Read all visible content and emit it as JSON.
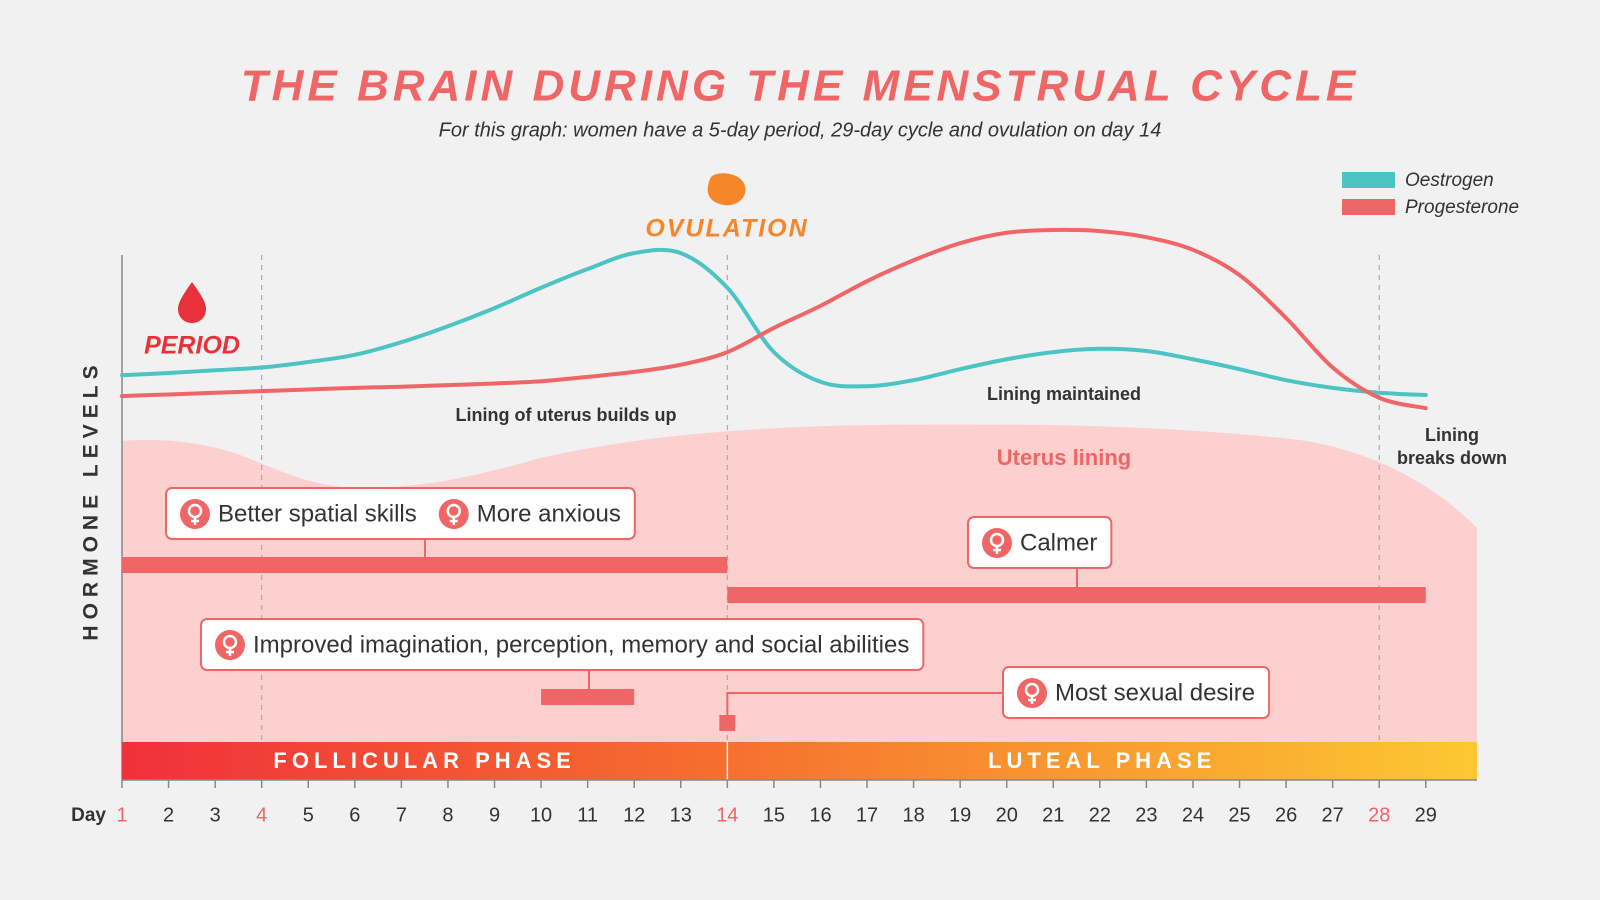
{
  "chart_data": {
    "type": "line",
    "title": "THE BRAIN DURING THE MENSTRUAL CYCLE",
    "subtitle": "For this graph: women have a 5-day period, 29-day cycle and ovulation on day 14",
    "ylabel": "HORMONE LEVELS",
    "xlabel": "Day",
    "x": [
      1,
      2,
      3,
      4,
      5,
      6,
      7,
      8,
      9,
      10,
      11,
      12,
      13,
      14,
      15,
      16,
      17,
      18,
      19,
      20,
      21,
      22,
      23,
      24,
      25,
      26,
      27,
      28,
      29
    ],
    "xlim": [
      1,
      30.1
    ],
    "ylim": [
      0,
      100
    ],
    "xticks": [
      1,
      2,
      3,
      4,
      5,
      6,
      7,
      8,
      9,
      10,
      11,
      12,
      13,
      14,
      15,
      16,
      17,
      18,
      19,
      20,
      21,
      22,
      23,
      24,
      25,
      26,
      27,
      28,
      29
    ],
    "xtick_highlight": [
      1,
      4,
      14,
      28
    ],
    "xtick_highlight_color": "#f06565",
    "vlines": [
      4,
      14,
      28
    ],
    "series": [
      {
        "name": "Oestrogen",
        "color": "#4cc4c4",
        "values": [
          73.6,
          74,
          74.5,
          75,
          76,
          77.3,
          79.6,
          82.5,
          85.8,
          89.5,
          92.9,
          95.8,
          95.8,
          89.5,
          77.8,
          72.4,
          71.6,
          72.7,
          74.7,
          76.5,
          77.8,
          78.4,
          78,
          76.5,
          74.7,
          72.7,
          71.3,
          70.4,
          70
        ]
      },
      {
        "name": "Progesterone",
        "color": "#f06565",
        "values": [
          69.8,
          70.1,
          70.4,
          70.7,
          71,
          71.3,
          71.5,
          71.8,
          72.1,
          72.5,
          73.3,
          74.2,
          75.5,
          77.8,
          82.2,
          86.2,
          90.7,
          94.5,
          97.6,
          99.5,
          100,
          99.8,
          98.7,
          96.4,
          91.8,
          84,
          75,
          69.5,
          67.6
        ]
      }
    ],
    "period_label": "PERIOD",
    "ovulation_label": "OVULATION",
    "annotations": {
      "builds_up": "Lining of uterus builds up",
      "maintained": "Lining maintained",
      "breaks_down": [
        "Lining",
        "breaks down"
      ],
      "uterus_lining": "Uterus lining"
    },
    "phases": [
      "FOLLICULAR PHASE",
      "LUTEAL PHASE"
    ],
    "phase_boundary": 14,
    "effects": [
      {
        "labels": [
          "Better spatial skills",
          "More anxious"
        ],
        "days": [
          1,
          14
        ]
      },
      {
        "labels": [
          "Calmer"
        ],
        "days": [
          14,
          29
        ]
      },
      {
        "labels": [
          "Improved imagination, perception, memory and social abilities"
        ],
        "days": [
          10,
          12
        ]
      },
      {
        "labels": [
          "Most sexual desire"
        ],
        "days": [
          14
        ]
      }
    ]
  }
}
